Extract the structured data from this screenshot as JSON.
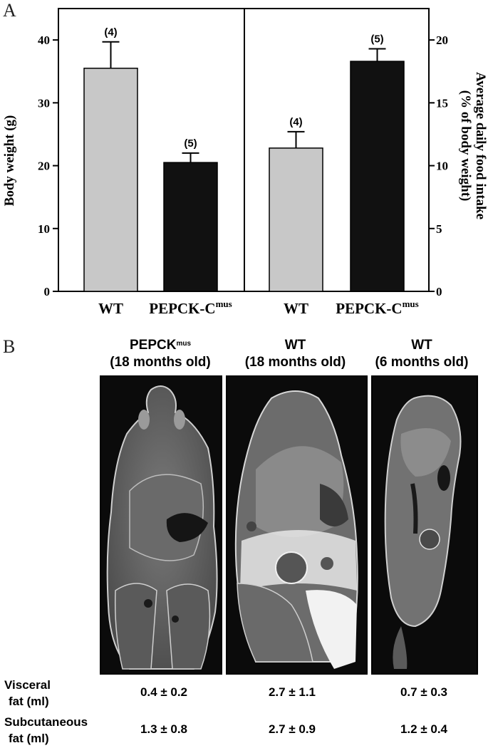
{
  "panel_a": {
    "letter": "A"
  },
  "panel_b": {
    "letter": "B",
    "columns": [
      {
        "title_main": "PEPCK",
        "title_sup": "mus",
        "subtitle": "(18 months old)"
      },
      {
        "title_main": "WT",
        "title_sup": "",
        "subtitle": "(18 months old)"
      },
      {
        "title_main": "WT",
        "title_sup": "",
        "subtitle": "(6 months old)"
      }
    ],
    "row_labels": {
      "visceral_line1": "Visceral",
      "visceral_line2": "fat (ml)",
      "subcutaneous_line1": "Subcutaneous",
      "subcutaneous_line2": "fat (ml)"
    },
    "visceral_values": [
      "0.4 ± 0.2",
      "2.7 ± 1.1",
      "0.7 ± 0.3"
    ],
    "subcutaneous_values": [
      "1.3 ± 0.8",
      "2.7 ± 0.9",
      "1.2 ± 0.4"
    ]
  },
  "chart_data": [
    {
      "type": "bar",
      "categories": [
        "WT",
        "PEPCK-C"
      ],
      "category_sup": [
        "",
        "mus"
      ],
      "values": [
        35.5,
        20.5
      ],
      "errors": [
        4.2,
        1.5
      ],
      "n_labels": [
        "(4)",
        "(5)"
      ],
      "bar_colors": [
        "#c8c8c8",
        "#111111"
      ],
      "ylabel": "Body weight (g)",
      "ylim": [
        0,
        45
      ],
      "yticks": [
        0,
        10,
        20,
        30,
        40
      ],
      "axis_side": "left"
    },
    {
      "type": "bar",
      "categories": [
        "WT",
        "PEPCK-C"
      ],
      "category_sup": [
        "",
        "mus"
      ],
      "values": [
        11.4,
        18.3
      ],
      "errors": [
        1.3,
        1.0
      ],
      "n_labels": [
        "(4)",
        "(5)"
      ],
      "bar_colors": [
        "#c8c8c8",
        "#111111"
      ],
      "ylabel": "Average daily food intake",
      "ylabel_line2": "(% of body weight)",
      "ylim": [
        0,
        22.5
      ],
      "yticks": [
        0,
        5,
        10,
        15,
        20
      ],
      "axis_side": "right"
    }
  ]
}
